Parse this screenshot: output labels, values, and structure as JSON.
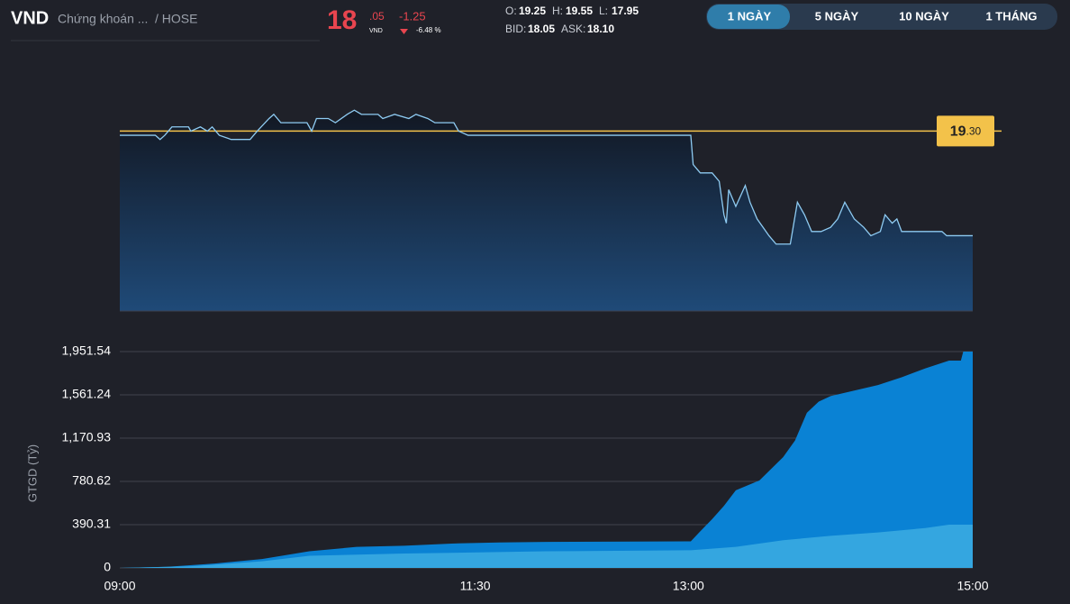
{
  "header": {
    "symbol": "VND",
    "company": "Chứng khoán ...",
    "exchange": "/ HOSE",
    "price_int": "18",
    "price_dec": ".05",
    "currency": "VND",
    "change": "-1.25",
    "change_pct": "-6.48 %",
    "ohlc": [
      {
        "label": "O:",
        "value": "19.25"
      },
      {
        "label": "H:",
        "value": "19.55"
      },
      {
        "label": "L:",
        "value": "17.95"
      }
    ],
    "quote": [
      {
        "label": "BID:",
        "value": "18.05"
      },
      {
        "label": "ASK:",
        "value": "18.10"
      }
    ],
    "tabs": [
      "1 NGÀY",
      "5 NGÀY",
      "10 NGÀY",
      "1 THÁNG"
    ],
    "active_tab": 0
  },
  "chart_data": [
    {
      "type": "line",
      "x": [
        540,
        555,
        557,
        559,
        562,
        569,
        570,
        574,
        577,
        579,
        582,
        587,
        595,
        598,
        603,
        605,
        608,
        613,
        619,
        621,
        623,
        628,
        631,
        636,
        639,
        642,
        649,
        651,
        656,
        662,
        665,
        670,
        673,
        681,
        683,
        687,
        690,
        781,
        782,
        785,
        790,
        793,
        795,
        796,
        797,
        800,
        804,
        806,
        809,
        814,
        817,
        823,
        826,
        829,
        832,
        836,
        840,
        843,
        846,
        850,
        854,
        857,
        861,
        863,
        866,
        868,
        870,
        887,
        889,
        900
      ],
      "series": [
        {
          "color": "#8ecbf2",
          "values": [
            19.25,
            19.25,
            19.2,
            19.25,
            19.35,
            19.35,
            19.3,
            19.35,
            19.3,
            19.35,
            19.25,
            19.2,
            19.2,
            19.3,
            19.45,
            19.5,
            19.4,
            19.4,
            19.4,
            19.3,
            19.45,
            19.45,
            19.4,
            19.5,
            19.55,
            19.5,
            19.5,
            19.45,
            19.5,
            19.45,
            19.5,
            19.45,
            19.4,
            19.4,
            19.3,
            19.25,
            19.25,
            19.25,
            18.9,
            18.8,
            18.8,
            18.7,
            18.3,
            18.2,
            18.6,
            18.4,
            18.65,
            18.45,
            18.25,
            18.05,
            17.95,
            17.95,
            18.45,
            18.3,
            18.1,
            18.1,
            18.15,
            18.25,
            18.45,
            18.25,
            18.15,
            18.05,
            18.1,
            18.3,
            18.2,
            18.25,
            18.1,
            18.1,
            18.05,
            18.05
          ]
        }
      ],
      "xlim": [
        540,
        900
      ],
      "ylim": [
        17.15,
        19.8
      ],
      "reference_line": {
        "value": 19.3,
        "color": "#f3c24a"
      },
      "reference_label": [
        "19",
        ".30"
      ]
    },
    {
      "type": "area",
      "ylabel": "GTGD (Tỷ)",
      "series": [
        {
          "color": "#0a82d4",
          "x": [
            540,
            560,
            580,
            600,
            620,
            640,
            660,
            680,
            700,
            720,
            781,
            785,
            790,
            795,
            800,
            810,
            820,
            825,
            830,
            835,
            840,
            850,
            860,
            870,
            880,
            890,
            895,
            896,
            900
          ],
          "values": [
            0,
            10,
            40,
            80,
            150,
            190,
            200,
            220,
            230,
            235,
            240,
            330,
            440,
            560,
            700,
            790,
            1000,
            1150,
            1400,
            1500,
            1550,
            1600,
            1650,
            1720,
            1800,
            1870,
            1870,
            1951.54,
            1951.54
          ]
        },
        {
          "color": "#34a6e0",
          "x": [
            540,
            570,
            600,
            620,
            660,
            720,
            781,
            800,
            820,
            840,
            860,
            880,
            890,
            900
          ],
          "values": [
            0,
            15,
            60,
            110,
            130,
            150,
            160,
            190,
            250,
            290,
            320,
            360,
            390,
            390
          ]
        }
      ],
      "xlim": [
        540,
        900
      ],
      "ylim": [
        0,
        1951.54
      ],
      "yticks": [
        0,
        {
          "value": 390.31,
          "label": "390.31"
        },
        {
          "value": 780.62,
          "label": "780.62"
        },
        {
          "value": 1170.93,
          "label": "1,170.93"
        },
        {
          "value": 1561.24,
          "label": "1,561.24"
        },
        {
          "value": 1951.54,
          "label": "1,951.54"
        }
      ],
      "xticks": [
        {
          "value": 540,
          "label": "09:00"
        },
        {
          "value": 690,
          "label": "11:30"
        },
        {
          "value": 780,
          "label": "13:00"
        },
        {
          "value": 900,
          "label": "15:00"
        }
      ],
      "grid": true
    }
  ]
}
